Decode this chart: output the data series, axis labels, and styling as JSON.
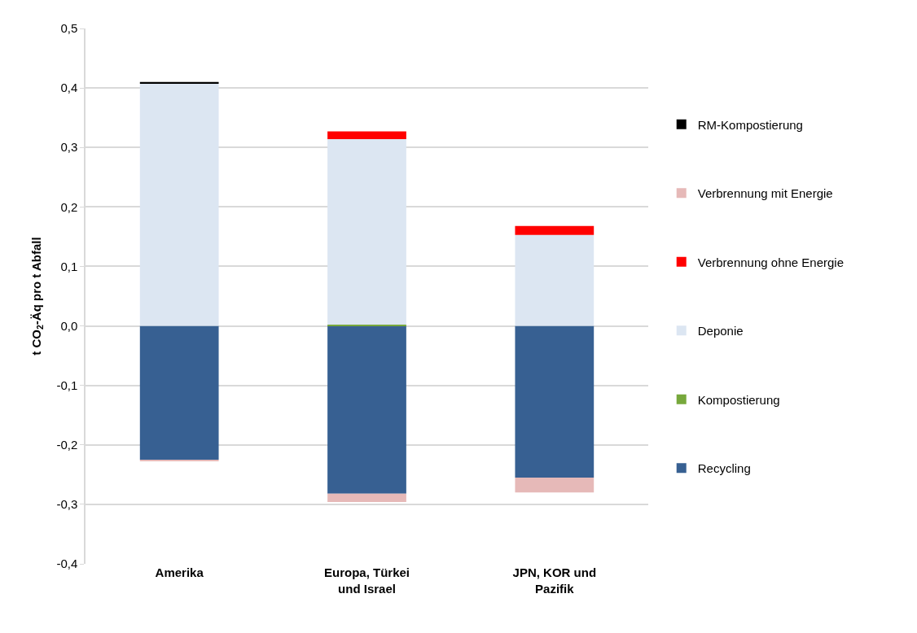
{
  "chart_data": {
    "type": "bar",
    "stacked": true,
    "ylabel": "t CO$_{2}$-Äq pro t Abfall",
    "categories": [
      "Amerika",
      "Europa, Türkei und Israel",
      "JPN, KOR und Pazifik"
    ],
    "series": [
      {
        "name": "Recycling",
        "color": "#376092",
        "values": [
          -0.225,
          -0.282,
          -0.255
        ]
      },
      {
        "name": "Kompostierung",
        "color": "#77a83c",
        "values": [
          0,
          0.002,
          0
        ]
      },
      {
        "name": "Deponie",
        "color": "#dce6f2",
        "values": [
          0.407,
          0.312,
          0.153
        ]
      },
      {
        "name": "Verbrennung ohne Energie",
        "color": "#ff0000",
        "values": [
          0,
          0.013,
          0.015
        ]
      },
      {
        "name": "Verbrennung mit Energie",
        "color": "#e6b9b8",
        "values": [
          -0.002,
          -0.014,
          -0.025
        ]
      },
      {
        "name": "RM-Kompostierung",
        "color": "#000000",
        "values": [
          0.003,
          0,
          0
        ]
      }
    ],
    "ylim": [
      -0.4,
      0.5
    ],
    "yticks": [
      {
        "value": -0.4,
        "label": "-0,4"
      },
      {
        "value": -0.3,
        "label": "-0,3"
      },
      {
        "value": -0.2,
        "label": "-0,2"
      },
      {
        "value": -0.1,
        "label": "-0,1"
      },
      {
        "value": 0,
        "label": "0,0"
      },
      {
        "value": 0.1,
        "label": "0,1"
      },
      {
        "value": 0.2,
        "label": "0,2"
      },
      {
        "value": 0.3,
        "label": "0,3"
      },
      {
        "value": 0.4,
        "label": "0,4"
      },
      {
        "value": 0.5,
        "label": "0,5"
      }
    ],
    "grid": "y",
    "legend": "right"
  }
}
